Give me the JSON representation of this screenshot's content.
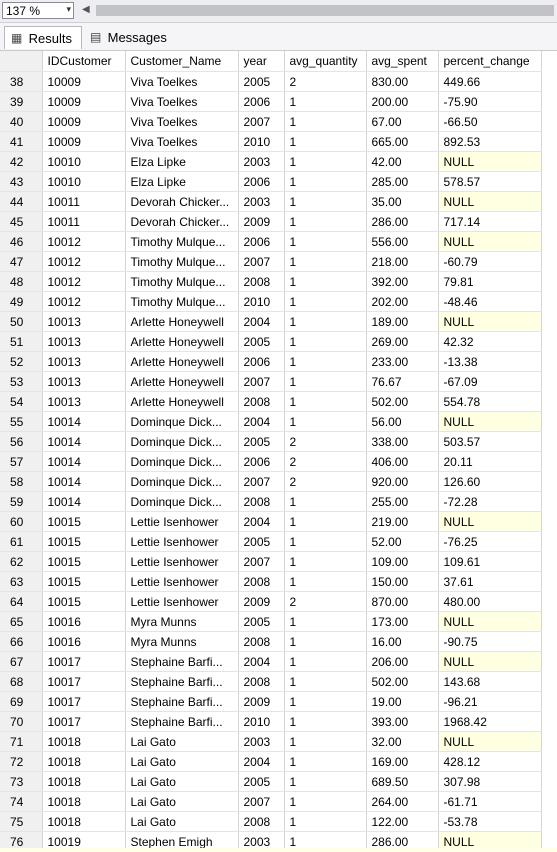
{
  "toolbar": {
    "zoom": "137 %",
    "zoom_arrow": "▾",
    "scroll_left_arrow": "◀"
  },
  "tabs": [
    {
      "label": "Results",
      "icon": "grid-icon"
    },
    {
      "label": "Messages",
      "icon": "messages-icon"
    }
  ],
  "columns": [
    "",
    "IDCustomer",
    "Customer_Name",
    "year",
    "avg_quantity",
    "avg_spent",
    "percent_change"
  ],
  "rows": [
    [
      "38",
      "10009",
      "Viva Toelkes",
      "2005",
      "2",
      "830.00",
      "449.66"
    ],
    [
      "39",
      "10009",
      "Viva Toelkes",
      "2006",
      "1",
      "200.00",
      "-75.90"
    ],
    [
      "40",
      "10009",
      "Viva Toelkes",
      "2007",
      "1",
      "67.00",
      "-66.50"
    ],
    [
      "41",
      "10009",
      "Viva Toelkes",
      "2010",
      "1",
      "665.00",
      "892.53"
    ],
    [
      "42",
      "10010",
      "Elza Lipke",
      "2003",
      "1",
      "42.00",
      "NULL"
    ],
    [
      "43",
      "10010",
      "Elza Lipke",
      "2006",
      "1",
      "285.00",
      "578.57"
    ],
    [
      "44",
      "10011",
      "Devorah Chicker...",
      "2003",
      "1",
      "35.00",
      "NULL"
    ],
    [
      "45",
      "10011",
      "Devorah Chicker...",
      "2009",
      "1",
      "286.00",
      "717.14"
    ],
    [
      "46",
      "10012",
      "Timothy Mulque...",
      "2006",
      "1",
      "556.00",
      "NULL"
    ],
    [
      "47",
      "10012",
      "Timothy Mulque...",
      "2007",
      "1",
      "218.00",
      "-60.79"
    ],
    [
      "48",
      "10012",
      "Timothy Mulque...",
      "2008",
      "1",
      "392.00",
      "79.81"
    ],
    [
      "49",
      "10012",
      "Timothy Mulque...",
      "2010",
      "1",
      "202.00",
      "-48.46"
    ],
    [
      "50",
      "10013",
      "Arlette Honeywell",
      "2004",
      "1",
      "189.00",
      "NULL"
    ],
    [
      "51",
      "10013",
      "Arlette Honeywell",
      "2005",
      "1",
      "269.00",
      "42.32"
    ],
    [
      "52",
      "10013",
      "Arlette Honeywell",
      "2006",
      "1",
      "233.00",
      "-13.38"
    ],
    [
      "53",
      "10013",
      "Arlette Honeywell",
      "2007",
      "1",
      "76.67",
      "-67.09"
    ],
    [
      "54",
      "10013",
      "Arlette Honeywell",
      "2008",
      "1",
      "502.00",
      "554.78"
    ],
    [
      "55",
      "10014",
      "Dominque Dick...",
      "2004",
      "1",
      "56.00",
      "NULL"
    ],
    [
      "56",
      "10014",
      "Dominque Dick...",
      "2005",
      "2",
      "338.00",
      "503.57"
    ],
    [
      "57",
      "10014",
      "Dominque Dick...",
      "2006",
      "2",
      "406.00",
      "20.11"
    ],
    [
      "58",
      "10014",
      "Dominque Dick...",
      "2007",
      "2",
      "920.00",
      "126.60"
    ],
    [
      "59",
      "10014",
      "Dominque Dick...",
      "2008",
      "1",
      "255.00",
      "-72.28"
    ],
    [
      "60",
      "10015",
      "Lettie Isenhower",
      "2004",
      "1",
      "219.00",
      "NULL"
    ],
    [
      "61",
      "10015",
      "Lettie Isenhower",
      "2005",
      "1",
      "52.00",
      "-76.25"
    ],
    [
      "62",
      "10015",
      "Lettie Isenhower",
      "2007",
      "1",
      "109.00",
      "109.61"
    ],
    [
      "63",
      "10015",
      "Lettie Isenhower",
      "2008",
      "1",
      "150.00",
      "37.61"
    ],
    [
      "64",
      "10015",
      "Lettie Isenhower",
      "2009",
      "2",
      "870.00",
      "480.00"
    ],
    [
      "65",
      "10016",
      "Myra Munns",
      "2005",
      "1",
      "173.00",
      "NULL"
    ],
    [
      "66",
      "10016",
      "Myra Munns",
      "2008",
      "1",
      "16.00",
      "-90.75"
    ],
    [
      "67",
      "10017",
      "Stephaine Barfi...",
      "2004",
      "1",
      "206.00",
      "NULL"
    ],
    [
      "68",
      "10017",
      "Stephaine Barfi...",
      "2008",
      "1",
      "502.00",
      "143.68"
    ],
    [
      "69",
      "10017",
      "Stephaine Barfi...",
      "2009",
      "1",
      "19.00",
      "-96.21"
    ],
    [
      "70",
      "10017",
      "Stephaine Barfi...",
      "2010",
      "1",
      "393.00",
      "1968.42"
    ],
    [
      "71",
      "10018",
      "Lai Gato",
      "2003",
      "1",
      "32.00",
      "NULL"
    ],
    [
      "72",
      "10018",
      "Lai Gato",
      "2004",
      "1",
      "169.00",
      "428.12"
    ],
    [
      "73",
      "10018",
      "Lai Gato",
      "2005",
      "1",
      "689.50",
      "307.98"
    ],
    [
      "74",
      "10018",
      "Lai Gato",
      "2007",
      "1",
      "264.00",
      "-61.71"
    ],
    [
      "75",
      "10018",
      "Lai Gato",
      "2008",
      "1",
      "122.00",
      "-53.78"
    ],
    [
      "76",
      "10019",
      "Stephen Emigh",
      "2003",
      "1",
      "286.00",
      "NULL"
    ]
  ]
}
